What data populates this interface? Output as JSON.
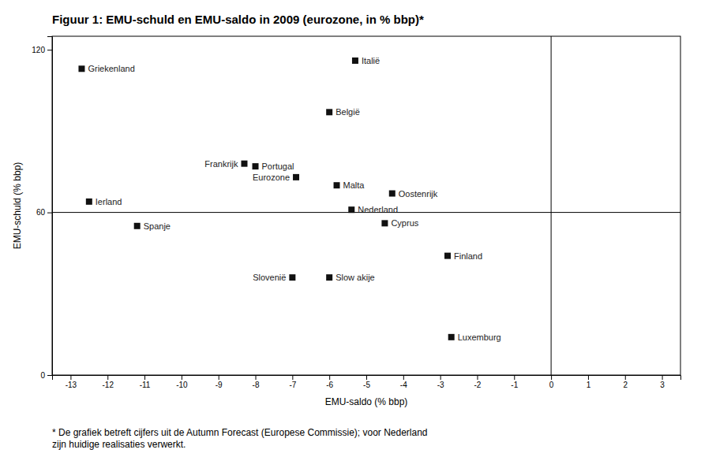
{
  "chart_data": {
    "type": "scatter",
    "title": "Figuur 1: EMU-schuld en EMU-saldo in 2009 (eurozone, in % bbp)*",
    "x_label": "EMU-saldo (% bbp)",
    "y_label": "EMU-schuld (% bbp)",
    "footnote": "* De grafiek betreft cijfers uit de Autumn Forecast (Europese Commissie); voor Nederland\nzijn huidige realisaties verwerkt.",
    "labels": [
      "Griekenland",
      "Italië",
      "België",
      "Frankrijk",
      "Portugal",
      "Eurozone",
      "Malta",
      "Oostenrijk",
      "Ierland",
      "Nederland",
      "Spanje",
      "Cyprus",
      "Finland",
      "Slovenië",
      "Slow akije",
      "Luxemburg"
    ],
    "x": [
      -12.7,
      -5.3,
      -6.0,
      -8.3,
      -8.0,
      -6.9,
      -5.8,
      -4.3,
      -12.5,
      -5.4,
      -11.2,
      -4.5,
      -2.8,
      -7.0,
      -6.0,
      -2.7
    ],
    "values": [
      113,
      116,
      97,
      78,
      77,
      73,
      70,
      67,
      64,
      61,
      55,
      56,
      44,
      36,
      36,
      14
    ],
    "color": "#111111",
    "marker": "square",
    "xlim": [
      -13.5,
      3.5
    ],
    "ylim": [
      0,
      125
    ],
    "xticks": [
      -13,
      -12,
      -11,
      -10,
      -9,
      -8,
      -7,
      -6,
      -5,
      -4,
      -3,
      -2,
      -1,
      0,
      1,
      2,
      3
    ],
    "yticks": [
      0,
      60,
      120
    ],
    "grid": false,
    "hline": 60,
    "vline": 0
  }
}
